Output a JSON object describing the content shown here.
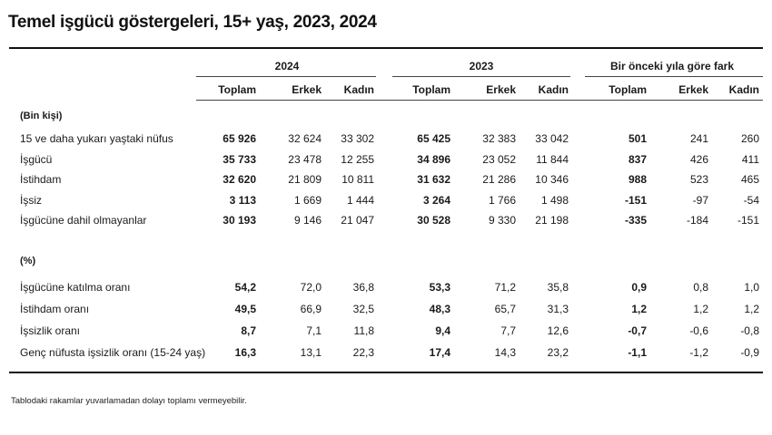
{
  "title": "Temel işgücü göstergeleri, 15+ yaş, 2023, 2024",
  "groups": {
    "g2024": "2024",
    "g2023": "2023",
    "diff": "Bir önceki yıla göre fark"
  },
  "columns": [
    "Toplam",
    "Erkek",
    "Kadın",
    "Toplam",
    "Erkek",
    "Kadın",
    "Toplam",
    "Erkek",
    "Kadın"
  ],
  "section1": "(Bin kişi)",
  "section2": "(%)",
  "rows": [
    {
      "label": "15 ve daha yukarı yaştaki nüfus",
      "cells": [
        "65 926",
        "32 624",
        "33 302",
        "65 425",
        "32 383",
        "33 042",
        "501",
        "241",
        "260"
      ]
    },
    {
      "label": "İşgücü",
      "cells": [
        "35 733",
        "23 478",
        "12 255",
        "34 896",
        "23 052",
        "11 844",
        "837",
        "426",
        "411"
      ]
    },
    {
      "label": "İstihdam",
      "cells": [
        "32 620",
        "21 809",
        "10 811",
        "31 632",
        "21 286",
        "10 346",
        "988",
        "523",
        "465"
      ]
    },
    {
      "label": "İşsiz",
      "cells": [
        "3 113",
        "1 669",
        "1 444",
        "3 264",
        "1 766",
        "1 498",
        "-151",
        "-97",
        "-54"
      ]
    },
    {
      "label": "İşgücüne dahil olmayanlar",
      "cells": [
        "30 193",
        "9 146",
        "21 047",
        "30 528",
        "9 330",
        "21 198",
        "-335",
        "-184",
        "-151"
      ]
    }
  ],
  "rows_pct": [
    {
      "label": "İşgücüne katılma oranı",
      "cells": [
        "54,2",
        "72,0",
        "36,8",
        "53,3",
        "71,2",
        "35,8",
        "0,9",
        "0,8",
        "1,0"
      ]
    },
    {
      "label": "İstihdam oranı",
      "cells": [
        "49,5",
        "66,9",
        "32,5",
        "48,3",
        "65,7",
        "31,3",
        "1,2",
        "1,2",
        "1,2"
      ]
    },
    {
      "label": "İşsizlik oranı",
      "cells": [
        "8,7",
        "7,1",
        "11,8",
        "9,4",
        "7,7",
        "12,6",
        "-0,7",
        "-0,6",
        "-0,8"
      ]
    },
    {
      "label": "Genç nüfusta işsizlik oranı (15-24 yaş)",
      "cells": [
        "16,3",
        "13,1",
        "22,3",
        "17,4",
        "14,3",
        "23,2",
        "-1,1",
        "-1,2",
        "-0,9"
      ]
    }
  ],
  "note": "Tablodaki rakamlar yuvarlamadan dolayı toplamı vermeyebilir."
}
